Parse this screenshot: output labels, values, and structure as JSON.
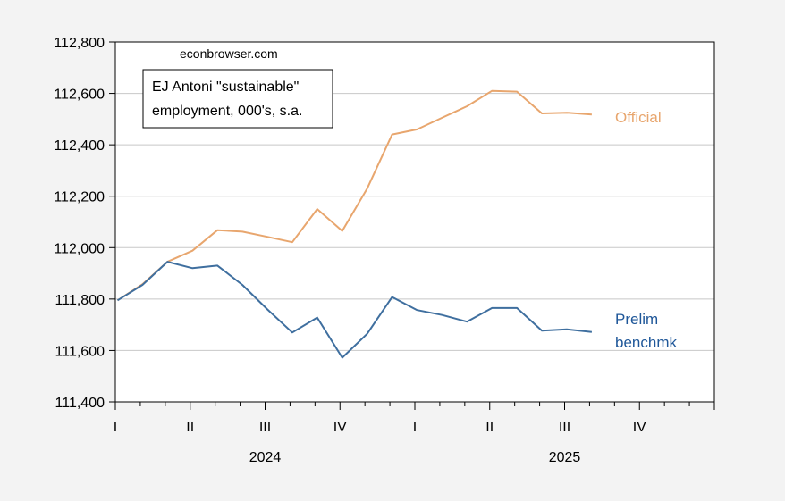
{
  "chart_data": {
    "type": "line",
    "source": "econbrowser.com",
    "title_lines": [
      "EJ Antoni \"sustainable\"",
      "employment, 000's, s.a."
    ],
    "ylim": [
      111400,
      112800
    ],
    "yticks": [
      111400,
      111600,
      111800,
      112000,
      112200,
      112400,
      112600,
      112800
    ],
    "ytick_labels": [
      "111,400",
      "111,600",
      "111,800",
      "112,000",
      "112,200",
      "112,400",
      "112,600",
      "112,800"
    ],
    "x_months": [
      "2024-01",
      "2024-02",
      "2024-03",
      "2024-04",
      "2024-05",
      "2024-06",
      "2024-07",
      "2024-08",
      "2024-09",
      "2024-10",
      "2024-11",
      "2024-12",
      "2025-01",
      "2025-02",
      "2025-03",
      "2025-04",
      "2025-05",
      "2025-06",
      "2025-07",
      "2025-08",
      "2025-09",
      "2025-10",
      "2025-11",
      "2025-12"
    ],
    "quarter_labels": [
      "I",
      "II",
      "III",
      "IV",
      "I",
      "II",
      "III",
      "IV"
    ],
    "year_labels": [
      "2024",
      "2025"
    ],
    "series": [
      {
        "name": "Official",
        "label_lines": [
          "Official"
        ],
        "color": "#e8a66e",
        "values": [
          111795,
          111858,
          111945,
          111988,
          112068,
          112062,
          112042,
          112021,
          112150,
          112065,
          112230,
          112440,
          112460,
          112505,
          112550,
          112610,
          112607,
          112522,
          112525,
          112518
        ]
      },
      {
        "name": "Prelim benchmk",
        "label_lines": [
          "Prelim",
          "benchmk"
        ],
        "color": "#3f6f9f",
        "label_color": "#1f5799",
        "values": [
          111795,
          111855,
          111945,
          111920,
          111930,
          111855,
          111760,
          111670,
          111728,
          111572,
          111665,
          111808,
          111757,
          111738,
          111712,
          111765,
          111765,
          111677,
          111682,
          111672
        ]
      }
    ]
  }
}
